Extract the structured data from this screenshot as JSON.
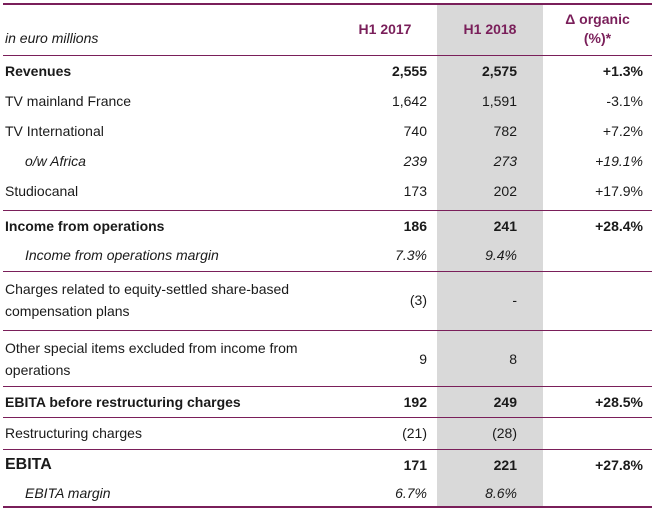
{
  "header": {
    "unit_label": "in euro millions",
    "col1": "H1 2017",
    "col2": "H1 2018",
    "col3_line1": "Δ  organic",
    "col3_line2": "(%)*"
  },
  "rows": [
    {
      "label": "Revenues",
      "v2017": "2,555",
      "v2018": "2,575",
      "delta": "+1.3%"
    },
    {
      "label": "TV mainland France",
      "v2017": "1,642",
      "v2018": "1,591",
      "delta": "-3.1%"
    },
    {
      "label": "TV International",
      "v2017": "740",
      "v2018": "782",
      "delta": "+7.2%"
    },
    {
      "label": "o/w Africa",
      "v2017": "239",
      "v2018": "273",
      "delta": "+19.1%"
    },
    {
      "label": "Studiocanal",
      "v2017": "173",
      "v2018": "202",
      "delta": "+17.9%"
    },
    {
      "label": "Income from operations",
      "v2017": "186",
      "v2018": "241",
      "delta": "+28.4%"
    },
    {
      "label": "Income from operations margin",
      "v2017": "7.3%",
      "v2018": "9.4%",
      "delta": ""
    },
    {
      "label_line1": "Charges related to equity-settled share-based",
      "label_line2": "compensation plans",
      "v2017": "(3)",
      "v2018": "-",
      "delta": ""
    },
    {
      "label_line1": "Other special items excluded from income from",
      "label_line2": "operations",
      "v2017": "9",
      "v2018": "8",
      "delta": ""
    },
    {
      "label": "EBITA before restructuring charges",
      "v2017": "192",
      "v2018": "249",
      "delta": "+28.5%"
    },
    {
      "label": "Restructuring charges",
      "v2017": "(21)",
      "v2018": "(28)",
      "delta": ""
    },
    {
      "label": "EBITA",
      "v2017": "171",
      "v2018": "221",
      "delta": "+27.8%"
    },
    {
      "label": "EBITA margin",
      "v2017": "6.7%",
      "v2018": "8.6%",
      "delta": ""
    }
  ]
}
